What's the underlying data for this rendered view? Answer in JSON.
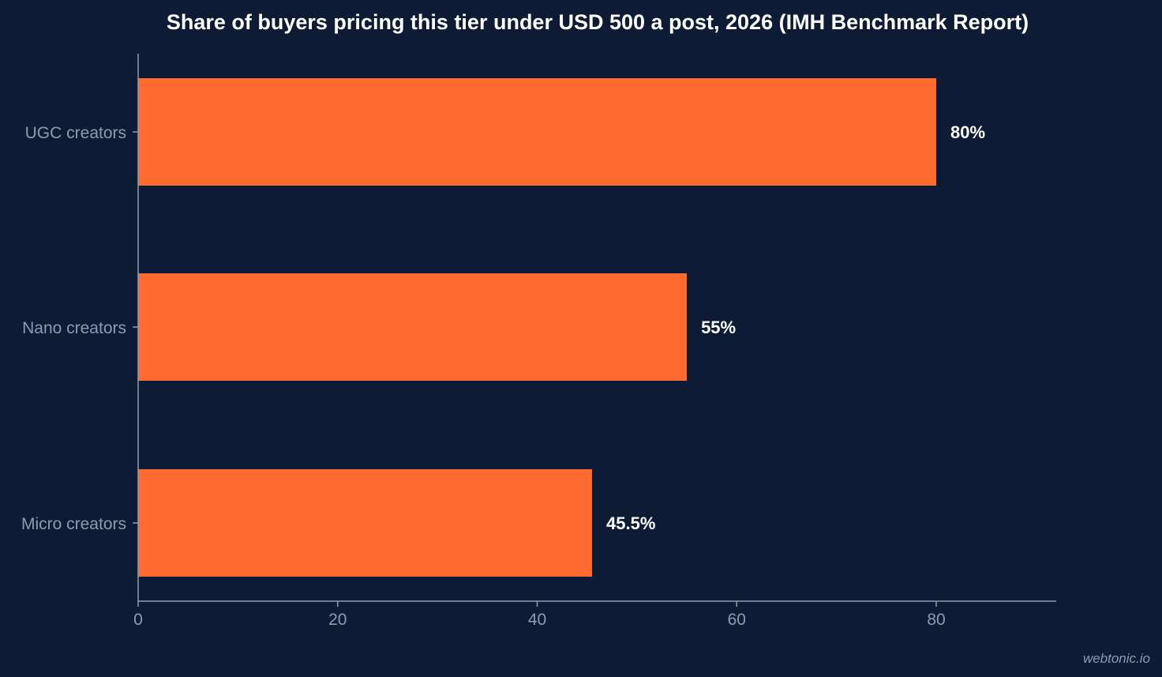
{
  "chart_data": {
    "type": "bar",
    "orientation": "horizontal",
    "title": "Share of buyers pricing this tier under USD 500 a post, 2026 (IMH Benchmark Report)",
    "categories": [
      "UGC creators",
      "Nano creators",
      "Micro creators"
    ],
    "values": [
      80,
      55,
      45.5
    ],
    "value_labels": [
      "80%",
      "55%",
      "45.5%"
    ],
    "xlabel": "",
    "ylabel": "",
    "xlim": [
      0,
      92
    ],
    "xticks": [
      0,
      20,
      40,
      60,
      80
    ],
    "xtick_labels": [
      "0",
      "20",
      "40",
      "60",
      "80"
    ],
    "grid": false,
    "legend": "none",
    "bar_color": "#ff6b2e"
  },
  "colors": {
    "background": "#0d1b35",
    "axis": "#8e9bb2",
    "text": "#ffffff"
  },
  "watermark": "webtonic.io"
}
